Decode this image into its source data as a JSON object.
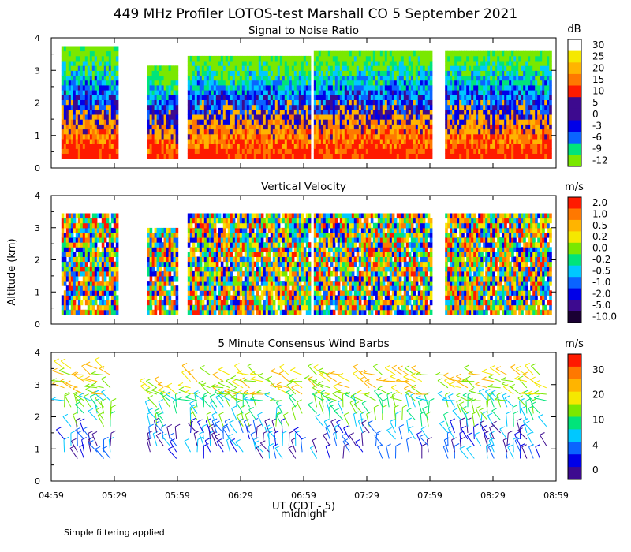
{
  "title": "449 MHz Profiler LOTOS-test Marshall CO  5 September 2021",
  "y_axis_label": "Altitude (km)",
  "x_axis_label": "UT (CDT - 5)",
  "midnight_label": "midnight",
  "footnote": "Simple filtering applied",
  "x_ticks": [
    "04:59",
    "05:29",
    "05:59",
    "06:29",
    "06:59",
    "07:29",
    "07:59",
    "08:29",
    "08:59"
  ],
  "colors": {
    "palette": [
      "#1a0033",
      "#3d0a8f",
      "#0000e8",
      "#0a64ff",
      "#00c8ff",
      "#00e47a",
      "#7ae800",
      "#f5e800",
      "#ffb400",
      "#ff7800",
      "#ff1a00",
      "#ffffff"
    ]
  },
  "chart_data": [
    {
      "type": "heatmap",
      "title": "Signal to Noise Ratio",
      "xlabel": "UT (CDT - 5)",
      "ylabel": "Altitude (km)",
      "ylim": [
        0,
        4
      ],
      "y_ticks": [
        "0",
        "1",
        "2",
        "3",
        "4"
      ],
      "colorbar_unit": "dB",
      "colorbar_labels": [
        "30",
        "25",
        "20",
        "15",
        "10",
        "5",
        "0",
        "-3",
        "-6",
        "-9",
        "-12"
      ],
      "colorbar_colors": [
        "#ffffff",
        "#f5e800",
        "#ffb400",
        "#ff7800",
        "#ff1a00",
        "#3d0a8f",
        "#3d0a8f",
        "#0000e8",
        "#0a64ff",
        "#00e47a",
        "#7ae800"
      ],
      "description_note": "SNR highest (10-20 dB) below ~1.5 km, decreasing to about -12 dB near 3.5-4 km"
    },
    {
      "type": "heatmap",
      "title": "Vertical Velocity",
      "xlabel": "UT (CDT - 5)",
      "ylabel": "Altitude (km)",
      "ylim": [
        0,
        4
      ],
      "y_ticks": [
        "0",
        "1",
        "2",
        "3",
        "4"
      ],
      "colorbar_unit": "m/s",
      "colorbar_labels": [
        "2.0",
        "1.0",
        "0.5",
        "0.2",
        "0.0",
        "-0.2",
        "-0.5",
        "-1.0",
        "-2.0",
        "-5.0",
        "-10.0"
      ],
      "colorbar_colors": [
        "#ff1a00",
        "#ff7800",
        "#ffb400",
        "#f5e800",
        "#7ae800",
        "#00e47a",
        "#00c8ff",
        "#0a64ff",
        "#0000e8",
        "#3d0a8f",
        "#1a0033"
      ]
    },
    {
      "type": "scatter",
      "title": "5 Minute Consensus Wind Barbs",
      "xlabel": "UT (CDT - 5)",
      "ylabel": "Altitude (km)",
      "ylim": [
        0,
        4
      ],
      "y_ticks": [
        "0",
        "1",
        "2",
        "3",
        "4"
      ],
      "colorbar_unit": "m/s",
      "colorbar_labels": [
        "30",
        "20",
        "10",
        "4",
        "0"
      ],
      "colorbar_colors": [
        "#ff1a00",
        "#ff7800",
        "#ffb400",
        "#f5e800",
        "#7ae800",
        "#00e47a",
        "#00c8ff",
        "#0a64ff",
        "#0000e8",
        "#3d0a8f"
      ]
    }
  ]
}
